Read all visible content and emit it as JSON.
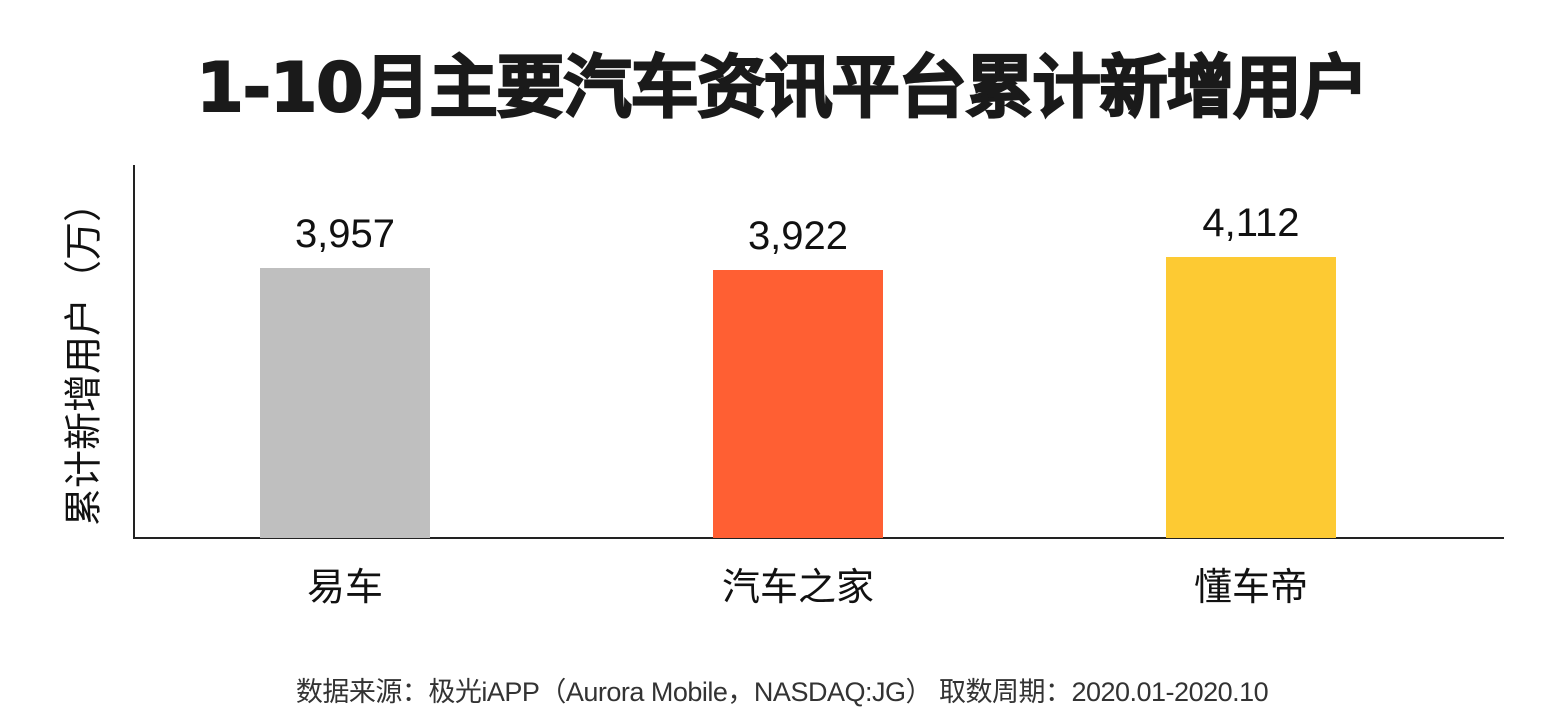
{
  "title": "1-10月主要汽车资讯平台累计新增用户",
  "y_axis_label": "累计新增用户（万）",
  "source": "数据来源：极光iAPP（Aurora Mobile，NASDAQ:JG）   取数周期：2020.01-2020.10",
  "bars": [
    {
      "label": "易车",
      "value_label": "3,957",
      "value": 3957,
      "color": "#BFBFBF"
    },
    {
      "label": "汽车之家",
      "value_label": "3,922",
      "value": 3922,
      "color": "#FF5F33"
    },
    {
      "label": "懂车帝",
      "value_label": "4,112",
      "value": 4112,
      "color": "#FDCA33"
    }
  ],
  "chart_data": {
    "type": "bar",
    "title": "1-10月主要汽车资讯平台累计新增用户",
    "categories": [
      "易车",
      "汽车之家",
      "懂车帝"
    ],
    "values": [
      3957,
      3922,
      4112
    ],
    "colors": [
      "#BFBFBF",
      "#FF5F33",
      "#FDCA33"
    ],
    "xlabel": "",
    "ylabel": "累计新增用户（万）",
    "data_labels": [
      "3,957",
      "3,922",
      "4,112"
    ],
    "grid": false,
    "legend": "none",
    "source": "数据来源：极光iAPP（Aurora Mobile，NASDAQ:JG） 取数周期：2020.01-2020.10"
  }
}
